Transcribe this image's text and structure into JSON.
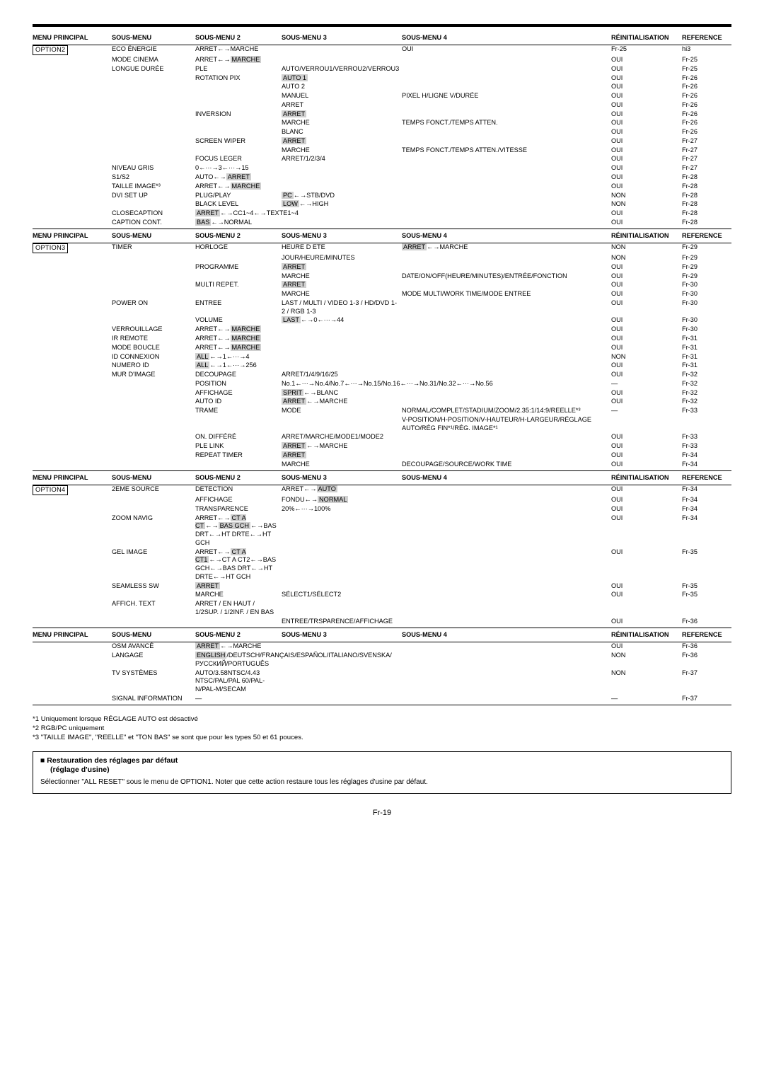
{
  "headers": {
    "mp": "MENU PRINCIPAL",
    "sm": "SOUS-MENU",
    "sm2": "SOUS-MENU 2",
    "sm3": "SOUS-MENU 3",
    "sm4": "SOUS-MENU 4",
    "reinit": "RÉINITIALISATION",
    "ref": "REFERENCE"
  },
  "grp1": {
    "opt": "OPTION2",
    "rows": [
      [
        "ECO ÉNERGIE",
        "ARRET←→MARCHE",
        "",
        "",
        "OUI",
        "Fr-25",
        "hi3"
      ],
      [
        "MODE CINEMA",
        "ARRET←→",
        "MARCHE",
        "",
        "",
        "OUI",
        "Fr-25",
        "hi3b"
      ],
      [
        "LONGUE DURÉE",
        "PLE",
        "AUTO/VERROU1/VERROU2/VERROU3",
        "",
        "",
        "OUI",
        "Fr-25",
        ""
      ],
      [
        "",
        "ROTATION PIX",
        "",
        "AUTO 1",
        "",
        "OUI",
        "Fr-26",
        "hi4"
      ],
      [
        "",
        "",
        "AUTO 2",
        "",
        "",
        "OUI",
        "Fr-26",
        ""
      ],
      [
        "",
        "",
        "MANUEL",
        "PIXEL H/LIGNE V/DURÉE",
        "",
        "OUI",
        "Fr-26",
        ""
      ],
      [
        "",
        "",
        "ARRET",
        "",
        "",
        "OUI",
        "Fr-26",
        ""
      ],
      [
        "",
        "INVERSION",
        "",
        "ARRET",
        "",
        "OUI",
        "Fr-26",
        "hi4"
      ],
      [
        "",
        "",
        "MARCHE",
        "TEMPS FONCT./TEMPS ATTEN.",
        "",
        "OUI",
        "Fr-26",
        ""
      ],
      [
        "",
        "",
        "BLANC",
        "",
        "",
        "OUI",
        "Fr-26",
        ""
      ],
      [
        "",
        "SCREEN WIPER",
        "",
        "ARRET",
        "",
        "OUI",
        "Fr-27",
        "hi4"
      ],
      [
        "",
        "",
        "MARCHE",
        "TEMPS FONCT./TEMPS ATTEN./VITESSE",
        "",
        "OUI",
        "Fr-27",
        ""
      ],
      [
        "",
        "FOCUS LEGER",
        "ARRET/1/2/3/4",
        "",
        "",
        "OUI",
        "Fr-27",
        ""
      ],
      [
        "NIVEAU GRIS",
        "0←···→3←···→15",
        "",
        "",
        "",
        "OUI",
        "Fr-27",
        ""
      ],
      [
        "S1/S2",
        "AUTO←→",
        "ARRET",
        "",
        "",
        "OUI",
        "Fr-28",
        "hi3b"
      ],
      [
        "TAILLE IMAGE*³",
        "ARRET←→",
        "MARCHE",
        "",
        "",
        "OUI",
        "Fr-28",
        "hi3b"
      ],
      [
        "DVI SET UP",
        "PLUG/PLAY",
        "",
        "PC←→STB/DVD",
        "",
        "NON",
        "Fr-28",
        "hi4pc"
      ],
      [
        "",
        "BLACK LEVEL",
        "",
        "LOW←→HIGH",
        "",
        "NON",
        "Fr-28",
        "hi4lo"
      ],
      [
        "CLOSECAPTION",
        "ARRET←→CC1~4←→TEXTE1~4",
        "",
        "",
        "",
        "OUI",
        "Fr-28",
        "hi3"
      ],
      [
        "CAPTION CONT.",
        "",
        "BAS←→NORMAL",
        "",
        "",
        "OUI",
        "Fr-28",
        "hi3c"
      ]
    ]
  },
  "grp2": {
    "opt": "OPTION3",
    "rows": [
      [
        "TIMER",
        "HORLOGE",
        "HEURE D ETE",
        "",
        "ARRET←→MARCHE",
        "NON",
        "Fr-29",
        "hi5"
      ],
      [
        "",
        "",
        "JOUR/HEURE/MINUTES",
        "",
        "",
        "NON",
        "Fr-29",
        ""
      ],
      [
        "",
        "PROGRAMME",
        "",
        "ARRET",
        "",
        "OUI",
        "Fr-29",
        "hi4"
      ],
      [
        "",
        "",
        "MARCHE",
        "",
        "DATE/ON/OFF(HEURE/MINUTES)/ENTRÉE/FONCTION",
        "OUI",
        "Fr-29",
        ""
      ],
      [
        "",
        "MULTI REPET.",
        "",
        "ARRET",
        "",
        "OUI",
        "Fr-30",
        "hi4"
      ],
      [
        "",
        "",
        "MARCHE",
        "",
        "MODE MULTI/WORK TIME/MODE ENTREE",
        "OUI",
        "Fr-30",
        ""
      ],
      [
        "POWER ON",
        "ENTREE",
        "LAST / MULTI / VIDEO 1-3 / HD/DVD 1-2 / RGB 1-3",
        "",
        "",
        "OUI",
        "Fr-30",
        ""
      ],
      [
        "",
        "VOLUME",
        "",
        "LAST←→0←···→44",
        "",
        "OUI",
        "Fr-30",
        "hi4ls"
      ],
      [
        "VERROUILLAGE",
        "ARRET←→",
        "MARCHE",
        "",
        "",
        "OUI",
        "Fr-30",
        "hi3b"
      ],
      [
        "IR REMOTE",
        "ARRET←→",
        "MARCHE",
        "",
        "",
        "OUI",
        "Fr-31",
        "hi3b"
      ],
      [
        "MODE BOUCLE",
        "ARRET←→",
        "MARCHE",
        "",
        "",
        "OUI",
        "Fr-31",
        "hi3b"
      ],
      [
        "ID CONNEXION",
        "",
        "ALL←→1←···→4",
        "",
        "",
        "NON",
        "Fr-31",
        "hi3d"
      ],
      [
        "NUMERO ID",
        "",
        "ALL←→1←···→256",
        "",
        "",
        "OUI",
        "Fr-31",
        "hi3d"
      ],
      [
        "MUR D'IMAGE",
        "DECOUPAGE",
        "ARRET/1/4/9/16/25",
        "",
        "",
        "OUI",
        "Fr-32",
        ""
      ],
      [
        "",
        "POSITION",
        "No.1←···→No.4/No.7←···→No.15/No.16←···→No.31/No.32←···→No.56",
        "",
        "",
        "—",
        "Fr-32",
        ""
      ],
      [
        "",
        "AFFICHAGE",
        "",
        "SPRIT←→BLANC",
        "",
        "OUI",
        "Fr-32",
        "hi4sp"
      ],
      [
        "",
        "AUTO ID",
        "ARRET←→MARCHE",
        "",
        "",
        "OUI",
        "Fr-32",
        "hi4ar"
      ],
      [
        "",
        "TRAME",
        "MODE",
        "",
        "NORMAL/COMPLET/STADIUM/ZOOM/2.35:1/14:9/REELLE*³",
        "—",
        "Fr-33",
        ""
      ],
      [
        "",
        "",
        "",
        "",
        "V-POSITION/H-POSITION/V-HAUTEUR/H-LARGEUR/RÉGLAGE AUTO/RÉG FIN*¹/RÉG. IMAGE*¹",
        "",
        "",
        ""
      ],
      [
        "",
        "ON. DIFFÉRÉ",
        "ARRET/MARCHE/MODE1/MODE2",
        "",
        "",
        "OUI",
        "Fr-33",
        ""
      ],
      [
        "",
        "PLE LINK",
        "ARRET←→MARCHE",
        "",
        "",
        "OUI",
        "Fr-33",
        "hi4ar"
      ],
      [
        "",
        "REPEAT TIMER",
        "",
        "ARRET",
        "",
        "OUI",
        "Fr-34",
        "hi4"
      ],
      [
        "",
        "",
        "MARCHE",
        "",
        "DECOUPAGE/SOURCE/WORK TIME",
        "OUI",
        "Fr-34",
        ""
      ]
    ]
  },
  "grp3": {
    "opt": "OPTION4",
    "rows": [
      [
        "2EME SOURCE",
        "DETECTION",
        "ARRET←→",
        "AUTO",
        "",
        "OUI",
        "Fr-34",
        "hi4b"
      ],
      [
        "",
        "AFFICHAGE",
        "FONDU←→",
        "NORMAL",
        "",
        "OUI",
        "Fr-34",
        "hi4b"
      ],
      [
        "",
        "TRANSPARENCE",
        "20%←···→100%",
        "",
        "",
        "OUI",
        "Fr-34",
        ""
      ],
      [
        "ZOOM NAVIG",
        "ARRET←→",
        "CT A CT←→BAS GCH←→BAS DRT←→HT DRTE←→HT GCH",
        "",
        "",
        "OUI",
        "Fr-34",
        "zn1"
      ],
      [
        "GEL IMAGE",
        "ARRET←→",
        "CT A CT1←→CT A CT2←→BAS GCH←→BAS DRT←→HT DRTE←→HT GCH",
        "",
        "",
        "OUI",
        "Fr-35",
        "zn2"
      ],
      [
        "SEAMLESS SW",
        "",
        "ARRET",
        "",
        "",
        "OUI",
        "Fr-35",
        "hi3e"
      ],
      [
        "",
        "MARCHE",
        "SÉLECT1/SÉLECT2",
        "",
        "",
        "OUI",
        "Fr-35",
        ""
      ],
      [
        "AFFICH. TEXT",
        "ARRET / EN HAUT / 1/2SUP. / 1/2INF. / EN BAS",
        "",
        "",
        "",
        "",
        "",
        ""
      ],
      [
        "",
        "",
        "ENTREE/TRSPARENCE/AFFICHAGE",
        "",
        "",
        "OUI",
        "Fr-36",
        ""
      ]
    ]
  },
  "grp4": {
    "rows": [
      [
        "OSM AVANCÉ",
        "ARRET←→MARCHE",
        "",
        "",
        "",
        "OUI",
        "Fr-36",
        "hi3"
      ],
      [
        "LANGAGE",
        "",
        "ENGLISH/DEUTSCH/FRANÇAIS/ESPAÑOL/ITALIANO/SVENSKA/РУССКИЙ/PORTUGUÊS",
        "",
        "",
        "NON",
        "Fr-36",
        "engl"
      ],
      [
        "TV SYSTÈMES",
        "AUTO/3.58NTSC/4.43 NTSC/PAL/PAL 60/PAL-N/PAL-M/SECAM",
        "",
        "",
        "",
        "NON",
        "Fr-37",
        ""
      ],
      [
        "SIGNAL INFORMATION",
        "—",
        "",
        "",
        "",
        "—",
        "Fr-37",
        ""
      ]
    ]
  },
  "footnotes": {
    "f1": "*1 Uniquement lorsque RÉGLAGE AUTO est désactivé",
    "f2": "*2 RGB/PC uniquement",
    "f3": "*3 \"TAILLE IMAGE\", \"REELLE\" et \"TON BAS\" se sont que pour les types 50 et 61 pouces."
  },
  "restore": {
    "title": "■ Restauration des réglages par défaut",
    "sub": "(réglage d'usine)",
    "body": "Sélectionner \"ALL RESET\" sous le menu de OPTION1. Noter que cette action restaure tous les réglages d'usine par défaut."
  },
  "pgnum": "Fr-19"
}
